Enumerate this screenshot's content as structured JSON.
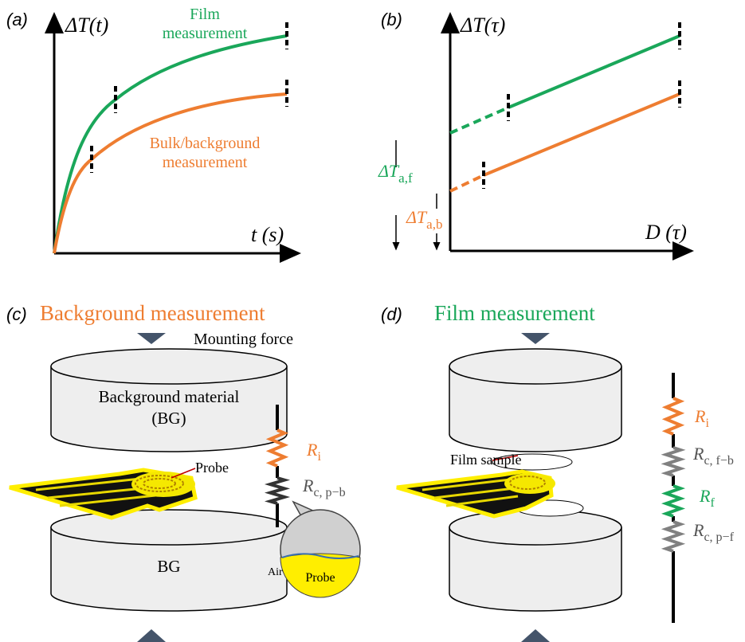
{
  "panel_a": {
    "label": "(a)",
    "y_axis_label": "ΔT(t)",
    "x_axis_label": "t (s)",
    "film_label": [
      "Film",
      "measurement"
    ],
    "bulk_label": [
      "Bulk/background",
      "measurement"
    ]
  },
  "panel_b": {
    "label": "(b)",
    "y_axis_label": "ΔT(τ)",
    "x_axis_label": "D (τ)",
    "offset_film": {
      "symbol": "ΔT",
      "subscript": "a,f"
    },
    "offset_bulk": {
      "symbol": "ΔT",
      "subscript": "a,b"
    }
  },
  "panel_c": {
    "label": "(c)",
    "title": "Background measurement",
    "force_label": "Mounting force",
    "top_block": [
      "Background material",
      "(BG)"
    ],
    "bottom_block": "BG",
    "probe_label": "Probe",
    "resistors": [
      {
        "symbol": "R",
        "subscript": "i"
      },
      {
        "symbol": "R",
        "subscript": "c, p−b"
      }
    ],
    "inset": {
      "air": "Air",
      "probe": "Probe"
    }
  },
  "panel_d": {
    "label": "(d)",
    "title": "Film measurement",
    "sample_label": "Film sample",
    "resistors": [
      {
        "symbol": "R",
        "subscript": "i"
      },
      {
        "symbol": "R",
        "subscript": "c, f−b"
      },
      {
        "symbol": "R",
        "subscript": "f"
      },
      {
        "symbol": "R",
        "subscript": "c, p−f"
      }
    ]
  }
}
